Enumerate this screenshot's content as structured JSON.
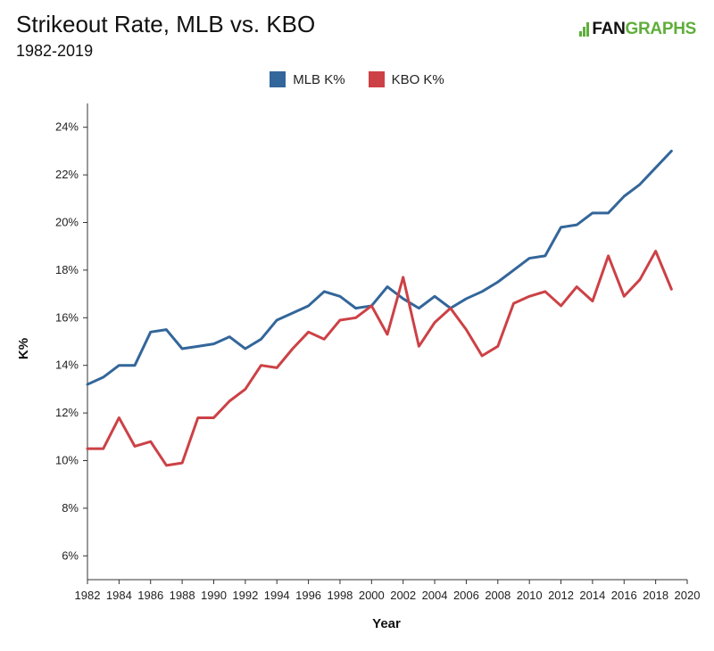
{
  "header": {
    "title": "Strikeout Rate, MLB vs. KBO",
    "subtitle": "1982-2019",
    "logo_fan": "FAN",
    "logo_graphs": "GRAPHS"
  },
  "chart_data": {
    "type": "line",
    "xlabel": "Year",
    "ylabel": "K%",
    "xlim": [
      1982,
      2020
    ],
    "ylim": [
      5,
      25
    ],
    "xticks": [
      1982,
      1984,
      1986,
      1988,
      1990,
      1992,
      1994,
      1996,
      1998,
      2000,
      2002,
      2004,
      2006,
      2008,
      2010,
      2012,
      2014,
      2016,
      2018,
      2020
    ],
    "yticks": [
      6,
      8,
      10,
      12,
      14,
      16,
      18,
      20,
      22,
      24
    ],
    "ytick_suffix": "%",
    "legend_position": "top-center",
    "grid": false,
    "x": [
      1982,
      1983,
      1984,
      1985,
      1986,
      1987,
      1988,
      1989,
      1990,
      1991,
      1992,
      1993,
      1994,
      1995,
      1996,
      1997,
      1998,
      1999,
      2000,
      2001,
      2002,
      2003,
      2004,
      2005,
      2006,
      2007,
      2008,
      2009,
      2010,
      2011,
      2012,
      2013,
      2014,
      2015,
      2016,
      2017,
      2018,
      2019
    ],
    "series": [
      {
        "name": "MLB K%",
        "color": "#33669a",
        "values": [
          13.2,
          13.5,
          14.0,
          14.0,
          15.4,
          15.5,
          14.7,
          14.8,
          14.9,
          15.2,
          14.7,
          15.1,
          15.9,
          16.2,
          16.5,
          17.1,
          16.9,
          16.4,
          16.5,
          17.3,
          16.8,
          16.4,
          16.9,
          16.4,
          16.8,
          17.1,
          17.5,
          18.0,
          18.5,
          18.6,
          19.8,
          19.9,
          20.4,
          20.4,
          21.1,
          21.6,
          22.3,
          23.0
        ]
      },
      {
        "name": "KBO K%",
        "color": "#cc4146",
        "values": [
          10.5,
          10.5,
          11.8,
          10.6,
          10.8,
          9.8,
          9.9,
          11.8,
          11.8,
          12.5,
          13.0,
          14.0,
          13.9,
          14.7,
          15.4,
          15.1,
          15.9,
          16.0,
          16.5,
          15.3,
          17.7,
          14.8,
          15.8,
          16.4,
          15.5,
          14.4,
          14.8,
          16.6,
          16.9,
          17.1,
          16.5,
          17.3,
          16.7,
          18.6,
          16.9,
          17.6,
          18.8,
          17.2
        ]
      }
    ]
  }
}
